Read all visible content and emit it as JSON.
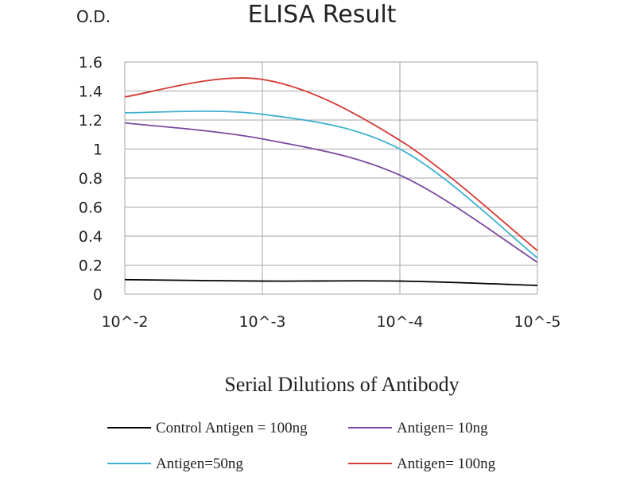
{
  "chart_data": {
    "type": "line",
    "title": "ELISA Result",
    "ylabel": "O.D.",
    "xlabel": "Serial Dilutions of Antibody",
    "x_ticks": [
      "10^-2",
      "10^-3",
      "10^-4",
      "10^-5"
    ],
    "y_ticks": [
      "0",
      "0.2",
      "0.4",
      "0.6",
      "0.8",
      "1",
      "1.2",
      "1.4",
      "1.6"
    ],
    "ylim": [
      0,
      1.6
    ],
    "grid": true,
    "legend_position": "bottom",
    "series": [
      {
        "name": "Control Antigen = 100ng",
        "color": "#000000",
        "x": [
          0.01,
          0.001,
          0.0001,
          1e-05
        ],
        "values": [
          0.1,
          0.09,
          0.09,
          0.06
        ]
      },
      {
        "name": "Antigen= 10ng",
        "color": "#7b4aa0",
        "x": [
          0.01,
          0.001,
          0.0001,
          1e-05
        ],
        "values": [
          1.18,
          1.07,
          0.82,
          0.22
        ]
      },
      {
        "name": "Antigen=50ng",
        "color": "#3fb1cf",
        "x": [
          0.01,
          0.001,
          0.0001,
          1e-05
        ],
        "values": [
          1.25,
          1.24,
          1.0,
          0.25
        ]
      },
      {
        "name": "Antigen= 100ng",
        "color": "#d33a33",
        "x": [
          0.01,
          0.001,
          0.0001,
          1e-05
        ],
        "values": [
          1.36,
          1.48,
          1.06,
          0.3
        ]
      }
    ]
  }
}
